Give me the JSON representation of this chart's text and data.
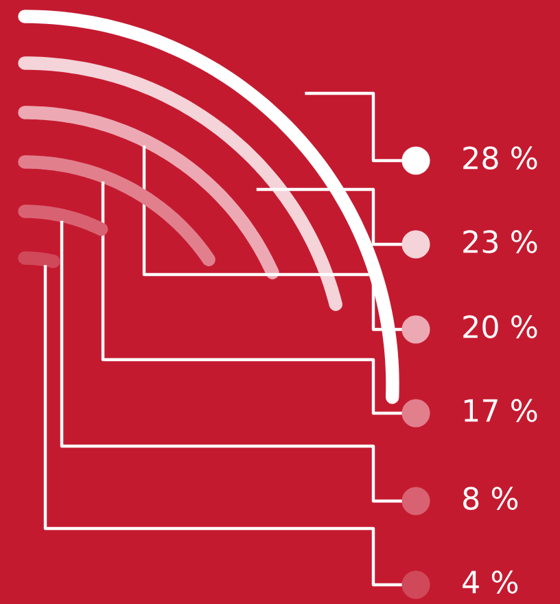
{
  "chart_data": {
    "type": "other",
    "values": [
      28,
      23,
      20,
      17,
      8,
      4
    ],
    "value_labels": [
      "28 %",
      "23 %",
      "20 %",
      "17 %",
      "8 %",
      "4 %"
    ],
    "colors": [
      "#ffffff",
      "#f4d3d9",
      "#eca9b3",
      "#e17f8d",
      "#d86272",
      "#d0495b"
    ]
  }
}
